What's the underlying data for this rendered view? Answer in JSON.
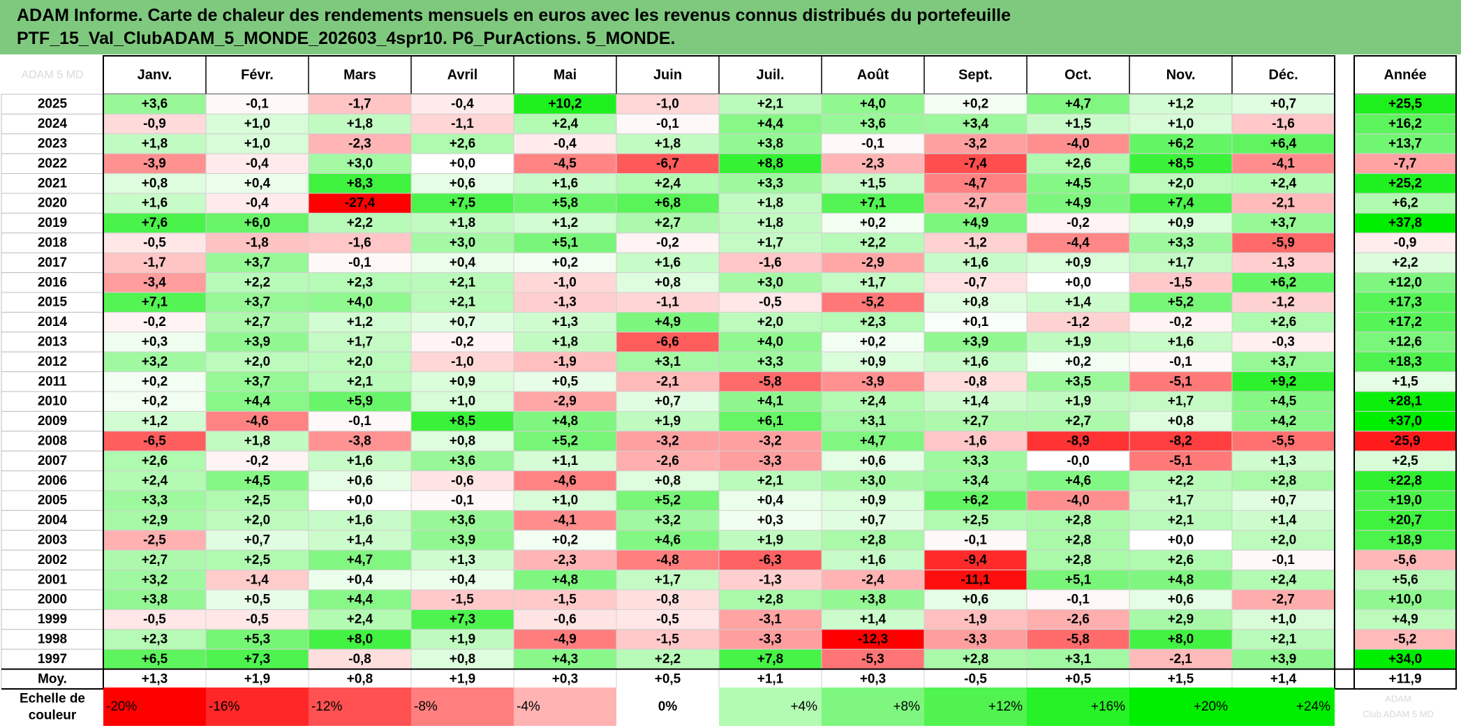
{
  "title": {
    "line1": "ADAM Informe. Carte de chaleur des rendements mensuels en euros avec les revenus connus distribués du portefeuille",
    "line2": "PTF_15_Val_ClubADAM_5_MONDE_202603_4spr10. P6_PurActions. 5_MONDE."
  },
  "chart_data": {
    "type": "heatmap",
    "corner_label": "ADAM 5 MD",
    "columns": [
      "Janv.",
      "Févr.",
      "Mars",
      "Avril",
      "Mai",
      "Juin",
      "Juil.",
      "Août",
      "Sept.",
      "Oct.",
      "Nov.",
      "Déc."
    ],
    "year_column": "Année",
    "rows": [
      {
        "year": "2025",
        "months": [
          "+3,6",
          "-0,1",
          "-1,7",
          "-0,4",
          "+10,2",
          "-1,0",
          "+2,1",
          "+4,0",
          "+0,2",
          "+4,7",
          "+1,2",
          "+0,7"
        ],
        "total": "+25,5"
      },
      {
        "year": "2024",
        "months": [
          "-0,9",
          "+1,0",
          "+1,8",
          "-1,1",
          "+2,4",
          "-0,1",
          "+4,4",
          "+3,6",
          "+3,4",
          "+1,5",
          "+1,0",
          "-1,6"
        ],
        "total": "+16,2"
      },
      {
        "year": "2023",
        "months": [
          "+1,8",
          "+1,0",
          "-2,3",
          "+2,6",
          "-0,4",
          "+1,8",
          "+3,8",
          "-0,1",
          "-3,2",
          "-4,0",
          "+6,2",
          "+6,4"
        ],
        "total": "+13,7"
      },
      {
        "year": "2022",
        "months": [
          "-3,9",
          "-0,4",
          "+3,0",
          "+0,0",
          "-4,5",
          "-6,7",
          "+8,8",
          "-2,3",
          "-7,4",
          "+2,6",
          "+8,5",
          "-4,1"
        ],
        "total": "-7,7"
      },
      {
        "year": "2021",
        "months": [
          "+0,8",
          "+0,4",
          "+8,3",
          "+0,6",
          "+1,6",
          "+2,4",
          "+3,3",
          "+1,5",
          "-4,7",
          "+4,5",
          "+2,0",
          "+2,4"
        ],
        "total": "+25,2"
      },
      {
        "year": "2020",
        "months": [
          "+1,6",
          "-0,4",
          "-27,4",
          "+7,5",
          "+5,8",
          "+6,8",
          "+1,8",
          "+7,1",
          "-2,7",
          "+4,9",
          "+7,4",
          "-2,1"
        ],
        "total": "+6,2"
      },
      {
        "year": "2019",
        "months": [
          "+7,6",
          "+6,0",
          "+2,2",
          "+1,8",
          "+1,2",
          "+2,7",
          "+1,8",
          "+0,2",
          "+4,9",
          "-0,2",
          "+0,9",
          "+3,7"
        ],
        "total": "+37,8"
      },
      {
        "year": "2018",
        "months": [
          "-0,5",
          "-1,8",
          "-1,6",
          "+3,0",
          "+5,1",
          "-0,2",
          "+1,7",
          "+2,2",
          "-1,2",
          "-4,4",
          "+3,3",
          "-5,9"
        ],
        "total": "-0,9"
      },
      {
        "year": "2017",
        "months": [
          "-1,7",
          "+3,7",
          "-0,1",
          "+0,4",
          "+0,2",
          "+1,6",
          "-1,6",
          "-2,9",
          "+1,6",
          "+0,9",
          "+1,7",
          "-1,3"
        ],
        "total": "+2,2"
      },
      {
        "year": "2016",
        "months": [
          "-3,4",
          "+2,2",
          "+2,3",
          "+2,1",
          "-1,0",
          "+0,8",
          "+3,0",
          "+1,7",
          "-0,7",
          "+0,0",
          "-1,5",
          "+6,2"
        ],
        "total": "+12,0"
      },
      {
        "year": "2015",
        "months": [
          "+7,1",
          "+3,7",
          "+4,0",
          "+2,1",
          "-1,3",
          "-1,1",
          "-0,5",
          "-5,2",
          "+0,8",
          "+1,4",
          "+5,2",
          "-1,2"
        ],
        "total": "+17,3"
      },
      {
        "year": "2014",
        "months": [
          "-0,2",
          "+2,7",
          "+1,2",
          "+0,7",
          "+1,3",
          "+4,9",
          "+2,0",
          "+2,3",
          "+0,1",
          "-1,2",
          "-0,2",
          "+2,6"
        ],
        "total": "+17,2"
      },
      {
        "year": "2013",
        "months": [
          "+0,3",
          "+3,9",
          "+1,7",
          "-0,2",
          "+1,8",
          "-6,6",
          "+4,0",
          "+0,2",
          "+3,9",
          "+1,9",
          "+1,6",
          "-0,3"
        ],
        "total": "+12,6"
      },
      {
        "year": "2012",
        "months": [
          "+3,2",
          "+2,0",
          "+2,0",
          "-1,0",
          "-1,9",
          "+3,1",
          "+3,3",
          "+0,9",
          "+1,6",
          "+0,2",
          "-0,1",
          "+3,7"
        ],
        "total": "+18,3"
      },
      {
        "year": "2011",
        "months": [
          "+0,2",
          "+3,7",
          "+2,1",
          "+0,9",
          "+0,5",
          "-2,1",
          "-5,8",
          "-3,9",
          "-0,8",
          "+3,5",
          "-5,1",
          "+9,2"
        ],
        "total": "+1,5"
      },
      {
        "year": "2010",
        "months": [
          "+0,2",
          "+4,4",
          "+5,9",
          "+1,0",
          "-2,9",
          "+0,7",
          "+4,1",
          "+2,4",
          "+1,4",
          "+1,9",
          "+1,7",
          "+4,5"
        ],
        "total": "+28,1"
      },
      {
        "year": "2009",
        "months": [
          "+1,2",
          "-4,6",
          "-0,1",
          "+8,5",
          "+4,8",
          "+1,9",
          "+6,1",
          "+3,1",
          "+2,7",
          "+2,7",
          "+0,8",
          "+4,2"
        ],
        "total": "+37,0"
      },
      {
        "year": "2008",
        "months": [
          "-6,5",
          "+1,8",
          "-3,8",
          "+0,8",
          "+5,2",
          "-3,2",
          "-3,2",
          "+4,7",
          "-1,6",
          "-8,9",
          "-8,2",
          "-5,5"
        ],
        "total": "-25,9"
      },
      {
        "year": "2007",
        "months": [
          "+2,6",
          "-0,2",
          "+1,6",
          "+3,6",
          "+1,1",
          "-2,6",
          "-3,3",
          "+0,6",
          "+3,3",
          "-0,0",
          "-5,1",
          "+1,3"
        ],
        "total": "+2,5"
      },
      {
        "year": "2006",
        "months": [
          "+2,4",
          "+4,5",
          "+0,6",
          "-0,6",
          "-4,6",
          "+0,8",
          "+2,1",
          "+3,0",
          "+3,4",
          "+4,6",
          "+2,2",
          "+2,8"
        ],
        "total": "+22,8"
      },
      {
        "year": "2005",
        "months": [
          "+3,3",
          "+2,5",
          "+0,0",
          "-0,1",
          "+1,0",
          "+5,2",
          "+0,4",
          "+0,9",
          "+6,2",
          "-4,0",
          "+1,7",
          "+0,7"
        ],
        "total": "+19,0"
      },
      {
        "year": "2004",
        "months": [
          "+2,9",
          "+2,0",
          "+1,6",
          "+3,6",
          "-4,1",
          "+3,2",
          "+0,3",
          "+0,7",
          "+2,5",
          "+2,8",
          "+2,1",
          "+1,4"
        ],
        "total": "+20,7"
      },
      {
        "year": "2003",
        "months": [
          "-2,5",
          "+0,7",
          "+1,4",
          "+3,9",
          "+0,2",
          "+4,6",
          "+1,9",
          "+2,8",
          "-0,1",
          "+2,8",
          "+0,0",
          "+2,0"
        ],
        "total": "+18,9"
      },
      {
        "year": "2002",
        "months": [
          "+2,7",
          "+2,5",
          "+4,7",
          "+1,3",
          "-2,3",
          "-4,8",
          "-6,3",
          "+1,6",
          "-9,4",
          "+2,8",
          "+2,6",
          "-0,1"
        ],
        "total": "-5,6"
      },
      {
        "year": "2001",
        "months": [
          "+3,2",
          "-1,4",
          "+0,4",
          "+0,4",
          "+4,8",
          "+1,7",
          "-1,3",
          "-2,4",
          "-11,1",
          "+5,1",
          "+4,8",
          "+2,4"
        ],
        "total": "+5,6"
      },
      {
        "year": "2000",
        "months": [
          "+3,8",
          "+0,5",
          "+4,4",
          "-1,5",
          "-1,5",
          "-0,8",
          "+2,8",
          "+3,8",
          "+0,6",
          "-0,1",
          "+0,6",
          "-2,7"
        ],
        "total": "+10,0"
      },
      {
        "year": "1999",
        "months": [
          "-0,5",
          "-0,5",
          "+2,4",
          "+7,3",
          "-0,6",
          "-0,5",
          "-3,1",
          "+1,4",
          "-1,9",
          "-2,6",
          "+2,9",
          "+1,0"
        ],
        "total": "+4,9"
      },
      {
        "year": "1998",
        "months": [
          "+2,3",
          "+5,3",
          "+8,0",
          "+1,9",
          "-4,9",
          "-1,5",
          "-3,3",
          "-12,3",
          "-3,3",
          "-5,8",
          "+8,0",
          "+2,1"
        ],
        "total": "-5,2"
      },
      {
        "year": "1997",
        "months": [
          "+6,5",
          "+7,3",
          "-0,8",
          "+0,8",
          "+4,3",
          "+2,2",
          "+7,8",
          "-5,3",
          "+2,8",
          "+3,1",
          "-2,1",
          "+3,9"
        ],
        "total": "+34,0"
      }
    ],
    "average_row": {
      "label": "Moy.",
      "months": [
        "+1,3",
        "+1,9",
        "+0,8",
        "+1,9",
        "+0,3",
        "+0,5",
        "+1,1",
        "+0,3",
        "-0,5",
        "+0,5",
        "+1,5",
        "+1,4"
      ],
      "total": "+11,9"
    },
    "scale": {
      "label_line1": "Echelle de",
      "label_line2": "couleur",
      "steps": [
        "-20%",
        "-16%",
        "-12%",
        "-8%",
        "-4%",
        "0%",
        "+4%",
        "+8%",
        "+12%",
        "+16%",
        "+20%",
        "+24%"
      ],
      "faint_line1": "ADAM",
      "faint_line2": "Club ADAM 5 MD"
    },
    "colors": {
      "title_bg": "#7fc97f",
      "negative_max": "#ff0000",
      "positive_max": "#00ee00",
      "neutral": "#ffffff"
    }
  }
}
